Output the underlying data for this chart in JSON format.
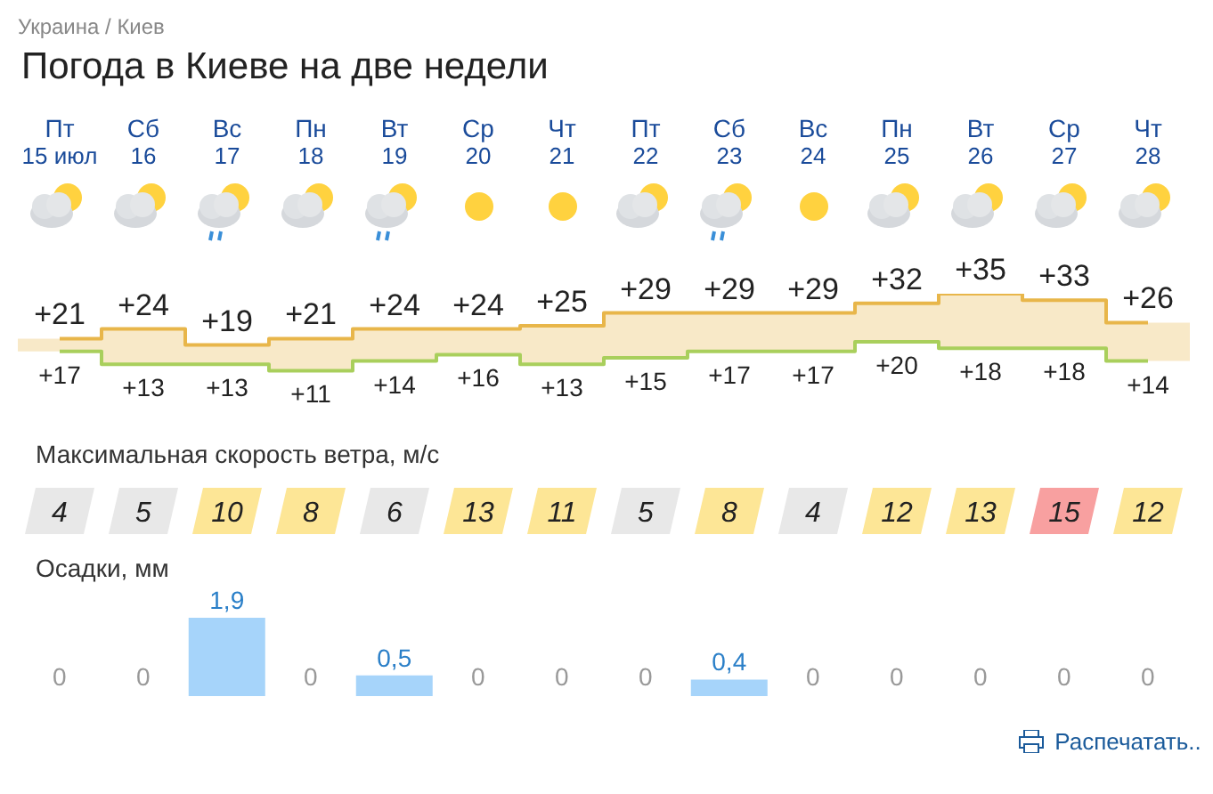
{
  "chart_data": [
    {
      "type": "step",
      "title": "Погода в Киеве на две недели",
      "annotations": [
        "Украина / Киев"
      ],
      "categories": [
        "Пт\n15 июл",
        "Сб\n16",
        "Вс\n17",
        "Пн\n18",
        "Вт\n19",
        "Ср\n20",
        "Чт\n21",
        "Пт\n22",
        "Сб\n23",
        "Вс\n24",
        "Пн\n25",
        "Вт\n26",
        "Ср\n27",
        "Чт\n28"
      ],
      "series": [
        {
          "color": "#e8b64a",
          "values": [
            21,
            24,
            19,
            21,
            24,
            24,
            25,
            29,
            29,
            29,
            32,
            35,
            33,
            26
          ],
          "value_labels": [
            "+21",
            "+24",
            "+19",
            "+21",
            "+24",
            "+24",
            "+25",
            "+29",
            "+29",
            "+29",
            "+32",
            "+35",
            "+33",
            "+26"
          ]
        },
        {
          "color": "#a9cf5c",
          "values": [
            17,
            13,
            13,
            11,
            14,
            16,
            13,
            15,
            17,
            17,
            20,
            18,
            18,
            14
          ],
          "value_labels": [
            "+17",
            "+13",
            "+13",
            "+11",
            "+14",
            "+16",
            "+13",
            "+15",
            "+17",
            "+17",
            "+20",
            "+18",
            "+18",
            "+14"
          ]
        }
      ]
    },
    {
      "type": "other",
      "title": "Максимальная скорость ветра, м/с",
      "categories": [
        null,
        null,
        null,
        null,
        null,
        null,
        null,
        null,
        null,
        null,
        null,
        null,
        null,
        null
      ],
      "values": [
        4,
        5,
        10,
        8,
        6,
        13,
        11,
        5,
        8,
        4,
        12,
        13,
        15,
        12
      ],
      "colors": [
        "#e8e8e8",
        "#e8e8e8",
        "#fde696",
        "#fde696",
        "#e8e8e8",
        "#fde696",
        "#fde696",
        "#e8e8e8",
        "#fde696",
        "#e8e8e8",
        "#fde696",
        "#fde696",
        "#f8a0a0",
        "#fde696"
      ],
      "data_labels": true
    },
    {
      "type": "bar",
      "title": "Осадки, мм",
      "annotations": [
        "Распечатать..."
      ],
      "categories": [
        null,
        null,
        null,
        null,
        null,
        null,
        null,
        null,
        null,
        null,
        null,
        null,
        null,
        null
      ],
      "values": [
        0,
        0,
        1.9,
        0,
        0.5,
        0,
        0,
        0,
        0.4,
        0,
        0,
        0,
        0,
        0
      ],
      "value_labels": [
        "0",
        "0",
        "1,9",
        "0",
        "0,5",
        "0",
        "0",
        "0",
        "0,4",
        "0",
        "0",
        "0",
        "0",
        "0"
      ],
      "color": "#a6d4fa"
    }
  ]
}
